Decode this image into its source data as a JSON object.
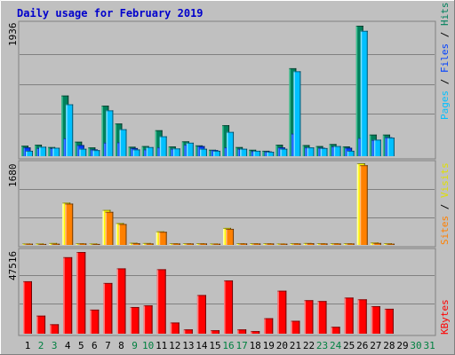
{
  "chart_data": {
    "type": "bar",
    "title": "Daily usage for February 2019",
    "colors": {
      "hits": "#00805c",
      "hits_light": "#40c090",
      "files": "#0040ff",
      "files_light": "#4080ff",
      "pages": "#00c0ff",
      "pages_light": "#80e0ff",
      "visits": "#ffff00",
      "visits_light": "#ffffb0",
      "sites": "#ff8000",
      "sites_light": "#ffc080",
      "kbytes": "#ff0000",
      "kbytes_light": "#ff8080",
      "title": "#0000cc",
      "weekday": "#000000",
      "weekend": "#008040",
      "panel_bg": "#c0c0c0",
      "frame": "#808080"
    },
    "categories": [
      "1",
      "2",
      "3",
      "4",
      "5",
      "6",
      "7",
      "8",
      "9",
      "10",
      "11",
      "12",
      "13",
      "14",
      "15",
      "16",
      "17",
      "18",
      "19",
      "20",
      "21",
      "22",
      "23",
      "24",
      "25",
      "26",
      "27",
      "28",
      "29",
      "30",
      "31"
    ],
    "weekend_days": [
      "2",
      "3",
      "9",
      "10",
      "16",
      "17",
      "23",
      "24",
      "30",
      "31"
    ],
    "panels": [
      {
        "name": "hits-files-pages",
        "max_label": "1936",
        "ylim": [
          0,
          1936
        ],
        "series": [
          {
            "name": "Hits",
            "values": [
              155,
              170,
              135,
              900,
              215,
              130,
              750,
              485,
              140,
              150,
              385,
              145,
              220,
              160,
              95,
              460,
              135,
              95,
              80,
              170,
              1305,
              165,
              150,
              180,
              145,
              1936,
              320,
              320,
              0,
              0,
              0
            ]
          },
          {
            "name": "Files",
            "values": [
              130,
              120,
              120,
              265,
              165,
              100,
              200,
              205,
              120,
              100,
              130,
              110,
              170,
              150,
              90,
              130,
              110,
              75,
              70,
              130,
              335,
              130,
              125,
              145,
              125,
              270,
              240,
              280,
              0,
              0,
              0
            ]
          },
          {
            "name": "Pages",
            "values": [
              80,
              140,
              125,
              770,
              110,
              90,
              680,
              400,
              100,
              135,
              295,
              115,
              200,
              110,
              80,
              360,
              110,
              80,
              65,
              110,
              1260,
              130,
              120,
              150,
              80,
              1860,
              245,
              275,
              0,
              0,
              0
            ]
          }
        ],
        "side_labels": [
          "Pages",
          "Files",
          "Hits"
        ]
      },
      {
        "name": "visits-sites",
        "max_label": "1680",
        "ylim": [
          0,
          1680
        ],
        "series": [
          {
            "name": "Visits",
            "values": [
              30,
              30,
              40,
              870,
              35,
              30,
              720,
              450,
              45,
              40,
              280,
              35,
              35,
              35,
              30,
              350,
              35,
              35,
              35,
              30,
              35,
              40,
              35,
              35,
              35,
              1680,
              50,
              35,
              0,
              0,
              0
            ]
          },
          {
            "name": "Sites",
            "values": [
              25,
              20,
              25,
              850,
              30,
              20,
              680,
              430,
              35,
              30,
              270,
              30,
              30,
              30,
              25,
              330,
              30,
              30,
              30,
              25,
              30,
              35,
              30,
              30,
              30,
              1640,
              40,
              25,
              0,
              0,
              0
            ]
          }
        ],
        "side_labels": [
          "Sites",
          "Visits"
        ]
      },
      {
        "name": "kbytes",
        "max_label": "47516",
        "ylim": [
          0,
          47516
        ],
        "series": [
          {
            "name": "KBytes",
            "values": [
              30500,
              10500,
              5500,
              44500,
              47516,
              14000,
              29500,
              38000,
              15500,
              16500,
              37500,
              6500,
              2500,
              22500,
              2000,
              31000,
              2500,
              1500,
              9000,
              25000,
              7500,
              19500,
              19000,
              4000,
              21000,
              20000,
              16000,
              14500,
              0,
              0,
              0
            ]
          }
        ],
        "side_labels": [
          "KBytes"
        ]
      }
    ]
  }
}
